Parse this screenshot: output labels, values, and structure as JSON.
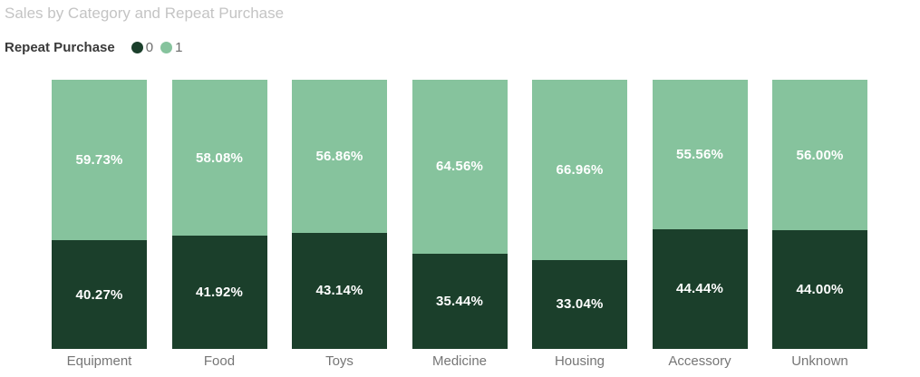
{
  "title": "Sales by Category and Repeat Purchase",
  "legend": {
    "title": "Repeat Purchase",
    "items": [
      {
        "label": "0",
        "color": "#1B3F2B"
      },
      {
        "label": "1",
        "color": "#86C39D"
      }
    ]
  },
  "colors": {
    "background": "#FFFFFF",
    "title_text": "#C4C4C4",
    "legend_title_text": "#3A3A3A",
    "legend_item_text": "#6D6D6D",
    "axis_label_text": "#767676",
    "data_label_text": "#FFFFFF",
    "series_0": "#1B3F2B",
    "series_1": "#86C39D"
  },
  "chart_data": {
    "type": "bar",
    "subtype": "100-percent-stacked-column",
    "title": "Sales by Category and Repeat Purchase",
    "categories": [
      "Equipment",
      "Food",
      "Toys",
      "Medicine",
      "Housing",
      "Accessory",
      "Unknown"
    ],
    "series": [
      {
        "name": "0",
        "color": "#1B3F2B",
        "values": [
          40.27,
          41.92,
          43.14,
          35.44,
          33.04,
          44.44,
          44.0
        ]
      },
      {
        "name": "1",
        "color": "#86C39D",
        "values": [
          59.73,
          58.08,
          56.86,
          64.56,
          66.96,
          55.56,
          56.0
        ]
      }
    ],
    "value_format": "percent-two-decimals",
    "ylim": [
      0,
      100
    ],
    "grid": false,
    "x_axis_visible_labels_only": true,
    "legend_position": "top-left",
    "stack_order_top_to_bottom": [
      "1",
      "0"
    ]
  }
}
